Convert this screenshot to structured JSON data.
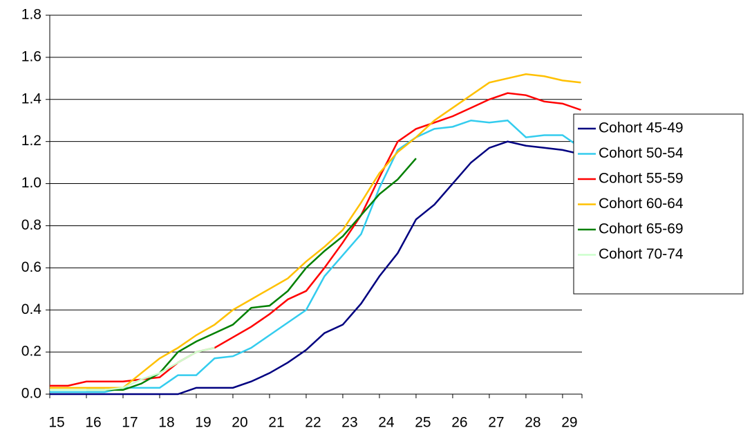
{
  "chart_data": {
    "type": "line",
    "x": [
      15,
      15.5,
      16,
      16.5,
      17,
      17.5,
      18,
      18.5,
      19,
      19.5,
      20,
      20.5,
      21,
      21.5,
      22,
      22.5,
      23,
      23.5,
      24,
      24.5,
      25,
      25.5,
      26,
      26.5,
      27,
      27.5,
      28,
      28.5,
      29,
      29.5
    ],
    "series": [
      {
        "name": "Cohort 45-49",
        "color": "#000080",
        "values": [
          0,
          0,
          0,
          0,
          0,
          0,
          0,
          0,
          0.03,
          0.03,
          0.03,
          0.06,
          0.1,
          0.15,
          0.21,
          0.29,
          0.33,
          0.43,
          0.56,
          0.67,
          0.83,
          0.9,
          1.0,
          1.1,
          1.17,
          1.2,
          1.18,
          1.17,
          1.16,
          1.14
        ]
      },
      {
        "name": "Cohort 50-54",
        "color": "#33ccee",
        "values": [
          0.01,
          0.01,
          0.01,
          0.01,
          0.03,
          0.03,
          0.03,
          0.09,
          0.09,
          0.17,
          0.18,
          0.22,
          0.28,
          0.34,
          0.4,
          0.56,
          0.66,
          0.76,
          0.98,
          1.16,
          1.22,
          1.26,
          1.27,
          1.3,
          1.29,
          1.3,
          1.22,
          1.23,
          1.23,
          1.17
        ]
      },
      {
        "name": "Cohort 55-59",
        "color": "#ff0000",
        "values": [
          0.04,
          0.04,
          0.06,
          0.06,
          0.06,
          0.07,
          0.08,
          0.15,
          0.2,
          0.22,
          0.27,
          0.32,
          0.38,
          0.45,
          0.49,
          0.6,
          0.72,
          0.85,
          1.03,
          1.2,
          1.26,
          1.29,
          1.32,
          1.36,
          1.4,
          1.43,
          1.42,
          1.39,
          1.38,
          1.35
        ]
      },
      {
        "name": "Cohort 60-64",
        "color": "#ffc000",
        "values": [
          0.03,
          0.03,
          0.03,
          0.03,
          0.03,
          0.1,
          0.17,
          0.22,
          0.28,
          0.33,
          0.4,
          0.45,
          0.5,
          0.55,
          0.63,
          0.7,
          0.78,
          0.91,
          1.05,
          1.15,
          1.22,
          1.3,
          1.36,
          1.42,
          1.48,
          1.5,
          1.52,
          1.51,
          1.49,
          1.48
        ]
      },
      {
        "name": "Cohort 65-69",
        "color": "#008000",
        "values": [
          null,
          null,
          0.02,
          0.02,
          0.02,
          0.05,
          0.1,
          0.2,
          0.25,
          0.29,
          0.33,
          0.41,
          0.42,
          0.49,
          0.6,
          0.68,
          0.75,
          0.85,
          0.95,
          1.02,
          1.12,
          null,
          null,
          null,
          null,
          null,
          null,
          null,
          null,
          null
        ]
      },
      {
        "name": "Cohort 70-74",
        "color": "#ccffcc",
        "values": [
          0.02,
          0.02,
          0.02,
          0.02,
          0.03,
          0.07,
          0.1,
          0.15,
          0.2,
          0.22,
          null,
          null,
          null,
          null,
          null,
          null,
          null,
          null,
          null,
          null,
          null,
          null,
          null,
          null,
          null,
          null,
          null,
          null,
          null,
          null
        ]
      }
    ],
    "xlim": [
      15,
      29.53
    ],
    "xticks": [
      15,
      16,
      17,
      18,
      19,
      20,
      21,
      22,
      23,
      24,
      25,
      26,
      27,
      28,
      29
    ],
    "ylim": [
      0,
      1.8
    ],
    "yticks": [
      {
        "value": 0,
        "label": "0.0"
      },
      0.2,
      0.4,
      0.6,
      0.8,
      {
        "value": 1,
        "label": "1.0"
      },
      1.2,
      1.4,
      1.6,
      1.8
    ],
    "grid": true,
    "legend": "right"
  }
}
